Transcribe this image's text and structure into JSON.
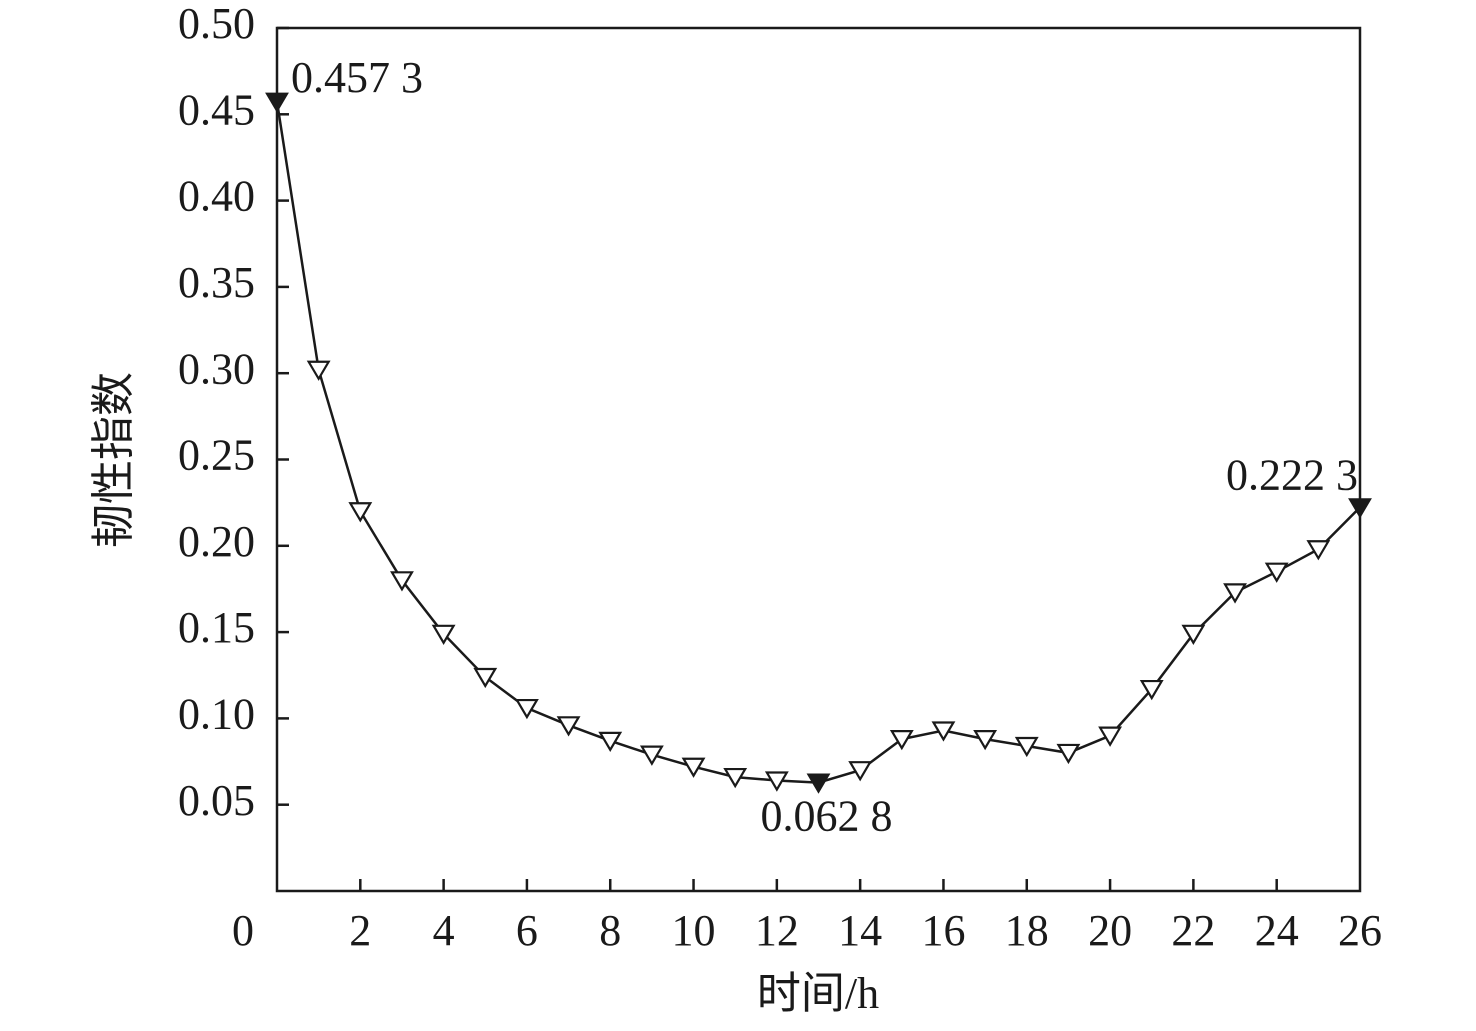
{
  "chart_data": {
    "type": "line",
    "x_label": "时间/h",
    "y_label": "韧性指数",
    "x": [
      0,
      1,
      2,
      3,
      4,
      5,
      6,
      7,
      8,
      9,
      10,
      11,
      12,
      13,
      14,
      15,
      16,
      17,
      18,
      19,
      20,
      21,
      22,
      23,
      24,
      25,
      26
    ],
    "series": [
      {
        "color": "#1a1a1a",
        "values": [
          0.4573,
          0.302,
          0.22,
          0.18,
          0.149,
          0.124,
          0.106,
          0.096,
          0.087,
          0.079,
          0.072,
          0.066,
          0.064,
          0.0628,
          0.07,
          0.088,
          0.093,
          0.088,
          0.084,
          0.08,
          0.09,
          0.117,
          0.149,
          0.173,
          0.185,
          0.198,
          0.2223
        ],
        "value_labels": [
          "0.457 3",
          null,
          null,
          null,
          null,
          null,
          null,
          null,
          null,
          null,
          null,
          null,
          null,
          "0.062 8",
          null,
          null,
          null,
          null,
          null,
          null,
          null,
          null,
          null,
          null,
          null,
          null,
          "0.222 3"
        ]
      }
    ],
    "xlim": [
      0,
      26
    ],
    "ylim": [
      0,
      0.5
    ],
    "xticks": [
      0,
      2,
      4,
      6,
      8,
      10,
      12,
      14,
      16,
      18,
      20,
      22,
      24,
      26
    ],
    "yticks": [
      0.05,
      {
        "value": 0.1,
        "label": "0.10"
      },
      0.15,
      {
        "value": 0.2,
        "label": "0.20"
      },
      0.25,
      {
        "value": 0.3,
        "label": "0.30"
      },
      0.35,
      {
        "value": 0.4,
        "label": "0.40"
      },
      0.45,
      {
        "value": 0.5,
        "label": "0.50"
      }
    ],
    "grid": false
  }
}
